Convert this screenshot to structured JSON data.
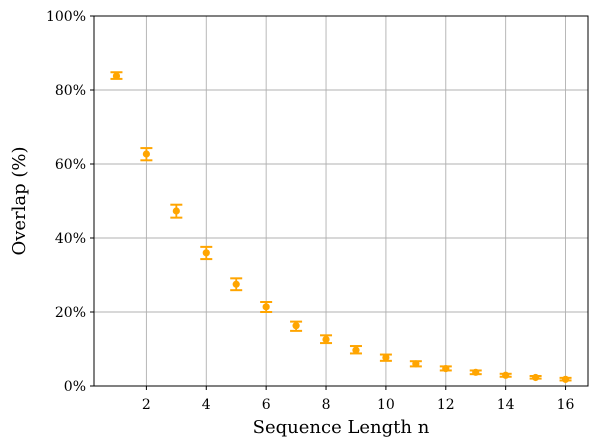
{
  "chart_data": {
    "type": "scatter",
    "xlabel": "Sequence Length n",
    "ylabel": "Overlap (%)",
    "xlim": [
      0.25,
      16.75
    ],
    "ylim": [
      0,
      100
    ],
    "grid": true,
    "color": "#ffa500",
    "x_ticks": [
      2,
      4,
      6,
      8,
      10,
      12,
      14,
      16
    ],
    "x_tick_labels": [
      "2",
      "4",
      "6",
      "8",
      "10",
      "12",
      "14",
      "16"
    ],
    "y_ticks": [
      0,
      20,
      40,
      60,
      80,
      100
    ],
    "y_tick_labels": [
      "0%",
      "20%",
      "40%",
      "60%",
      "80%",
      "100%"
    ],
    "series": [
      {
        "x": [
          1,
          2,
          3,
          4,
          5,
          6,
          7,
          8,
          9,
          10,
          11,
          12,
          13,
          14,
          15,
          16
        ],
        "y": [
          83.8,
          62.7,
          47.3,
          36.0,
          27.5,
          21.4,
          16.3,
          12.6,
          9.7,
          7.7,
          6.0,
          4.7,
          3.7,
          2.9,
          2.3,
          1.8
        ],
        "err_low": [
          83.0,
          61.0,
          45.5,
          34.3,
          25.9,
          20.0,
          14.9,
          11.6,
          8.8,
          6.8,
          5.3,
          4.2,
          3.2,
          2.5,
          2.0,
          1.5
        ],
        "err_high": [
          84.8,
          64.3,
          49.0,
          37.6,
          29.1,
          22.7,
          17.4,
          13.7,
          10.8,
          8.5,
          6.7,
          5.3,
          4.2,
          3.3,
          2.7,
          2.2
        ]
      }
    ]
  }
}
